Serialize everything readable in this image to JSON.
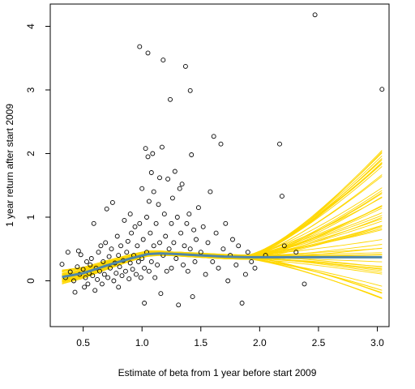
{
  "chart_data": {
    "type": "scatter",
    "xlabel": "Estimate of beta from 1 year before start 2009",
    "ylabel": "1 year return after start 2009",
    "xlim": [
      0.22,
      3.1
    ],
    "ylim": [
      -0.72,
      4.35
    ],
    "xticks": [
      0.5,
      1.0,
      1.5,
      2.0,
      2.5,
      3.0
    ],
    "xtick_labels": [
      "0.5",
      "1.0",
      "1.5",
      "2.0",
      "2.5",
      "3.0"
    ],
    "yticks": [
      0,
      1,
      2,
      3,
      4
    ],
    "ytick_labels": [
      "0",
      "1",
      "2",
      "3",
      "4"
    ],
    "grid": false,
    "point_style": "open-circle",
    "colors": {
      "points": "#000000",
      "bootstrap_lines": "#FFD700",
      "smooth_line": "#4F86A8"
    },
    "points": [
      [
        0.32,
        0.26
      ],
      [
        0.35,
        0.05
      ],
      [
        0.37,
        0.45
      ],
      [
        0.39,
        0.14
      ],
      [
        0.42,
        0.0
      ],
      [
        0.43,
        -0.18
      ],
      [
        0.45,
        0.22
      ],
      [
        0.46,
        0.47
      ],
      [
        0.47,
        0.1
      ],
      [
        0.48,
        0.41
      ],
      [
        0.5,
        0.18
      ],
      [
        0.51,
        -0.1
      ],
      [
        0.52,
        0.05
      ],
      [
        0.53,
        0.3
      ],
      [
        0.54,
        -0.05
      ],
      [
        0.55,
        0.12
      ],
      [
        0.56,
        0.25
      ],
      [
        0.57,
        0.35
      ],
      [
        0.58,
        0.08
      ],
      [
        0.59,
        0.9
      ],
      [
        0.6,
        -0.15
      ],
      [
        0.61,
        0.2
      ],
      [
        0.62,
        0.02
      ],
      [
        0.63,
        0.45
      ],
      [
        0.64,
        0.15
      ],
      [
        0.65,
        0.55
      ],
      [
        0.66,
        -0.05
      ],
      [
        0.67,
        0.3
      ],
      [
        0.68,
        0.1
      ],
      [
        0.69,
        0.6
      ],
      [
        0.7,
        1.13
      ],
      [
        0.71,
        0.05
      ],
      [
        0.72,
        0.38
      ],
      [
        0.73,
        0.2
      ],
      [
        0.74,
        0.5
      ],
      [
        0.75,
        1.23
      ],
      [
        0.76,
        0.0
      ],
      [
        0.77,
        0.28
      ],
      [
        0.78,
        0.12
      ],
      [
        0.79,
        0.7
      ],
      [
        0.8,
        0.4
      ],
      [
        0.8,
        -0.1
      ],
      [
        0.81,
        0.22
      ],
      [
        0.82,
        0.55
      ],
      [
        0.83,
        0.08
      ],
      [
        0.84,
        0.32
      ],
      [
        0.85,
        0.95
      ],
      [
        0.86,
        0.15
      ],
      [
        0.87,
        0.45
      ],
      [
        0.88,
        0.62
      ],
      [
        0.89,
        0.03
      ],
      [
        0.9,
        0.28
      ],
      [
        0.9,
        1.05
      ],
      [
        0.91,
        0.75
      ],
      [
        0.92,
        0.18
      ],
      [
        0.93,
        0.4
      ],
      [
        0.94,
        0.85
      ],
      [
        0.95,
        0.1
      ],
      [
        0.96,
        0.55
      ],
      [
        0.97,
        0.3
      ],
      [
        0.98,
        3.68
      ],
      [
        0.98,
        0.9
      ],
      [
        0.99,
        0.05
      ],
      [
        1.0,
        0.35
      ],
      [
        1.0,
        1.45
      ],
      [
        1.01,
        0.65
      ],
      [
        1.02,
        -0.35
      ],
      [
        1.02,
        0.2
      ],
      [
        1.03,
        2.08
      ],
      [
        1.04,
        1.0
      ],
      [
        1.04,
        0.45
      ],
      [
        1.05,
        1.95
      ],
      [
        1.05,
        3.58
      ],
      [
        1.06,
        0.15
      ],
      [
        1.06,
        1.25
      ],
      [
        1.07,
        0.75
      ],
      [
        1.08,
        1.7
      ],
      [
        1.08,
        0.3
      ],
      [
        1.09,
        2.0
      ],
      [
        1.1,
        0.55
      ],
      [
        1.1,
        1.4
      ],
      [
        1.11,
        0.05
      ],
      [
        1.12,
        0.9
      ],
      [
        1.13,
        0.25
      ],
      [
        1.14,
        1.2
      ],
      [
        1.15,
        0.6
      ],
      [
        1.15,
        1.62
      ],
      [
        1.16,
        -0.2
      ],
      [
        1.17,
        2.1
      ],
      [
        1.18,
        0.4
      ],
      [
        1.18,
        3.47
      ],
      [
        1.19,
        1.05
      ],
      [
        1.2,
        0.7
      ],
      [
        1.21,
        0.15
      ],
      [
        1.22,
        1.6
      ],
      [
        1.23,
        0.5
      ],
      [
        1.24,
        2.85
      ],
      [
        1.25,
        0.9
      ],
      [
        1.25,
        0.2
      ],
      [
        1.26,
        1.3
      ],
      [
        1.27,
        0.6
      ],
      [
        1.28,
        1.72
      ],
      [
        1.29,
        0.35
      ],
      [
        1.3,
        1.0
      ],
      [
        1.31,
        -0.38
      ],
      [
        1.32,
        1.45
      ],
      [
        1.33,
        0.75
      ],
      [
        1.34,
        1.52
      ],
      [
        1.35,
        0.25
      ],
      [
        1.36,
        0.55
      ],
      [
        1.37,
        3.37
      ],
      [
        1.38,
        0.9
      ],
      [
        1.39,
        0.15
      ],
      [
        1.4,
        1.05
      ],
      [
        1.41,
        2.99
      ],
      [
        1.41,
        0.5
      ],
      [
        1.42,
        1.98
      ],
      [
        1.43,
        -0.25
      ],
      [
        1.44,
        0.8
      ],
      [
        1.45,
        0.3
      ],
      [
        1.46,
        0.65
      ],
      [
        1.48,
        1.15
      ],
      [
        1.5,
        0.45
      ],
      [
        1.52,
        0.85
      ],
      [
        1.54,
        0.1
      ],
      [
        1.56,
        0.6
      ],
      [
        1.58,
        1.4
      ],
      [
        1.6,
        0.3
      ],
      [
        1.61,
        2.27
      ],
      [
        1.63,
        0.75
      ],
      [
        1.65,
        0.2
      ],
      [
        1.67,
        2.15
      ],
      [
        1.69,
        0.5
      ],
      [
        1.71,
        0.9
      ],
      [
        1.73,
        0.0
      ],
      [
        1.75,
        0.4
      ],
      [
        1.77,
        0.65
      ],
      [
        1.8,
        0.25
      ],
      [
        1.82,
        0.55
      ],
      [
        1.85,
        -0.35
      ],
      [
        1.88,
        0.1
      ],
      [
        1.9,
        0.45
      ],
      [
        1.93,
        0.3
      ],
      [
        1.96,
        0.2
      ],
      [
        2.05,
        0.4
      ],
      [
        2.17,
        2.15
      ],
      [
        2.19,
        1.33
      ],
      [
        2.21,
        0.55
      ],
      [
        2.31,
        0.45
      ],
      [
        2.38,
        -0.05
      ],
      [
        2.47,
        4.18
      ],
      [
        3.04,
        3.01
      ]
    ],
    "smooth_line": {
      "x": [
        0.32,
        0.5,
        0.7,
        0.9,
        1.05,
        1.15,
        1.3,
        1.5,
        1.7,
        1.9,
        2.1,
        2.4,
        2.7,
        3.04
      ],
      "y": [
        0.06,
        0.12,
        0.24,
        0.35,
        0.42,
        0.43,
        0.42,
        0.4,
        0.38,
        0.37,
        0.37,
        0.37,
        0.37,
        0.37
      ]
    },
    "bootstrap_lines": {
      "count": 60,
      "end_range_at_xmax": [
        -0.28,
        2.18
      ]
    }
  }
}
